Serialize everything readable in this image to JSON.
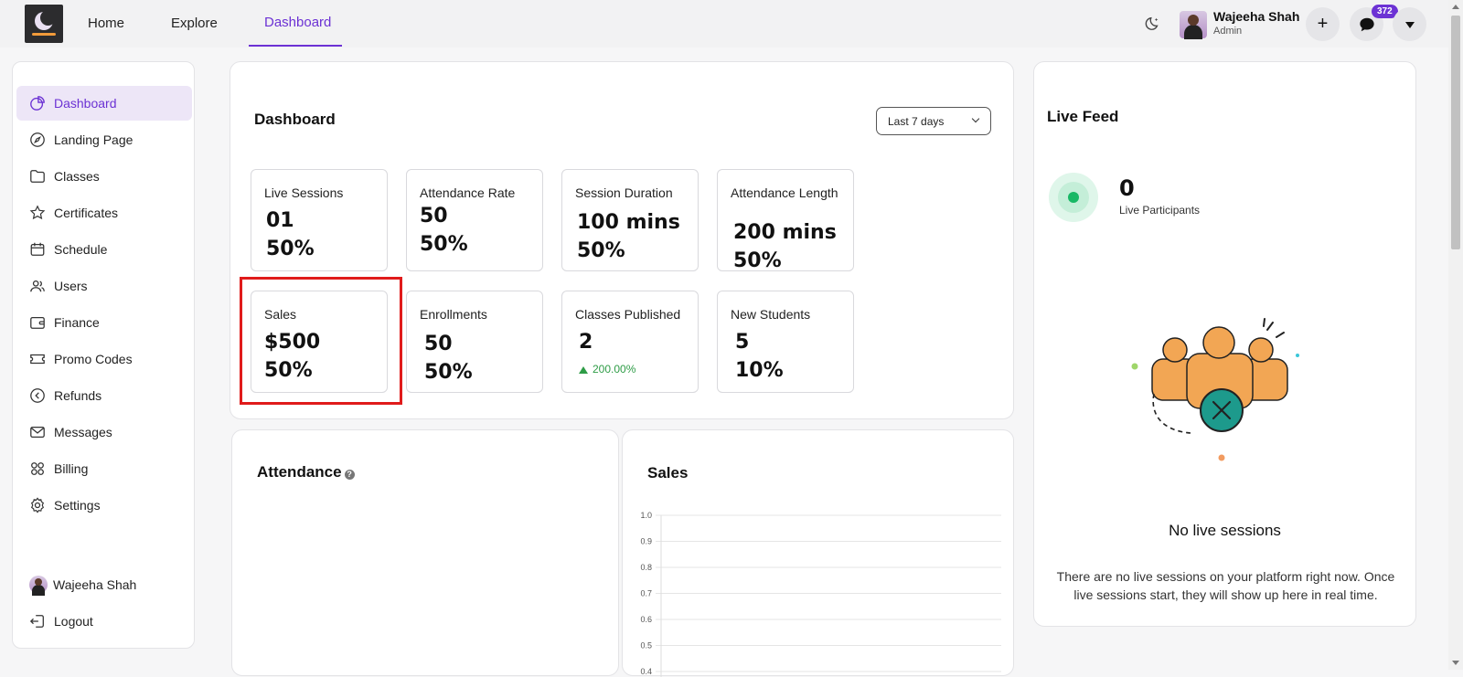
{
  "topnav": {
    "links": [
      "Home",
      "Explore",
      "Dashboard"
    ],
    "active": "Dashboard",
    "user_name": "Wajeeha Shah",
    "user_role": "Admin",
    "notification_count": "372"
  },
  "sidebar": {
    "items": [
      {
        "label": "Dashboard",
        "icon": "pie-chart-icon"
      },
      {
        "label": "Landing Page",
        "icon": "compass-icon"
      },
      {
        "label": "Classes",
        "icon": "folder-icon"
      },
      {
        "label": "Certificates",
        "icon": "star-icon"
      },
      {
        "label": "Schedule",
        "icon": "calendar-icon"
      },
      {
        "label": "Users",
        "icon": "users-icon"
      },
      {
        "label": "Finance",
        "icon": "wallet-icon"
      },
      {
        "label": "Promo Codes",
        "icon": "ticket-icon"
      },
      {
        "label": "Refunds",
        "icon": "refund-icon"
      },
      {
        "label": "Messages",
        "icon": "mail-icon"
      },
      {
        "label": "Billing",
        "icon": "grid-icon"
      },
      {
        "label": "Settings",
        "icon": "gear-icon"
      }
    ],
    "user_name": "Wajeeha Shah",
    "logout": "Logout"
  },
  "dashboard": {
    "title": "Dashboard",
    "range": "Last 7 days",
    "stats": [
      {
        "label": "Live Sessions",
        "value": "01",
        "change": "50%"
      },
      {
        "label": "Attendance Rate",
        "value": "50",
        "change": "50%"
      },
      {
        "label": "Session Duration",
        "value": "100 mins",
        "change": "50%"
      },
      {
        "label": "Attendance Length",
        "value": "200 mins",
        "change": "50%"
      },
      {
        "label": "Sales",
        "value": "$500",
        "change": "50%"
      },
      {
        "label": "Enrollments",
        "value": "50",
        "change": "50%"
      },
      {
        "label": "Classes Published",
        "value": "2",
        "change": "200.00%"
      },
      {
        "label": "New Students",
        "value": "5",
        "change": "10%"
      }
    ]
  },
  "attendance": {
    "title": "Attendance"
  },
  "sales": {
    "title": "Sales",
    "y_ticks": [
      "1.0",
      "0.9",
      "0.8",
      "0.7",
      "0.6",
      "0.5",
      "0.4"
    ]
  },
  "live_feed": {
    "title": "Live Feed",
    "count": "0",
    "count_label": "Live Participants",
    "empty_title": "No live sessions",
    "empty_desc": "There are no live sessions on your platform right now. Once live sessions start, they will show up here in real time."
  },
  "colors": {
    "accent": "#6c32d4",
    "live_green": "#18b865",
    "highlight": "#e01b1b",
    "trend_up": "#2e9c46"
  }
}
